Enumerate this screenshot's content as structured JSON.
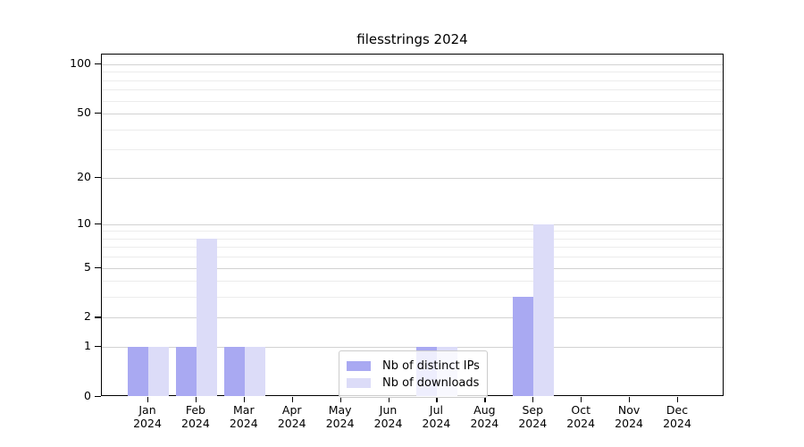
{
  "chart_data": {
    "type": "bar",
    "title": "filesstrings 2024",
    "categories": [
      "Jan 2024",
      "Feb 2024",
      "Mar 2024",
      "Apr 2024",
      "May 2024",
      "Jun 2024",
      "Jul 2024",
      "Aug 2024",
      "Sep 2024",
      "Oct 2024",
      "Nov 2024",
      "Dec 2024"
    ],
    "series": [
      {
        "name": "Nb of distinct IPs",
        "color": "#a9a9f2",
        "values": [
          1,
          1,
          1,
          0,
          0,
          0,
          1,
          0,
          3,
          0,
          0,
          0
        ]
      },
      {
        "name": "Nb of downloads",
        "color": "#dcdcf8",
        "values": [
          1,
          8,
          1,
          0,
          0,
          0,
          1,
          0,
          10,
          0,
          0,
          0
        ]
      }
    ],
    "xlabel": "",
    "ylabel": "",
    "yscale": "log1p",
    "ylim": [
      0,
      115
    ],
    "y_major_ticks": [
      0,
      1,
      2,
      5,
      10,
      20,
      50,
      100
    ],
    "y_minor_ticks": [
      3,
      4,
      6,
      7,
      8,
      9,
      30,
      40,
      60,
      70,
      80,
      90
    ],
    "grid": "on",
    "legend_position": "lower center"
  },
  "colors": {
    "background": "#ffffff",
    "spine": "#000000",
    "text": "#000000",
    "major_grid": "#d2d2d2",
    "minor_grid": "#ececec",
    "legend_border": "#cccccc"
  }
}
